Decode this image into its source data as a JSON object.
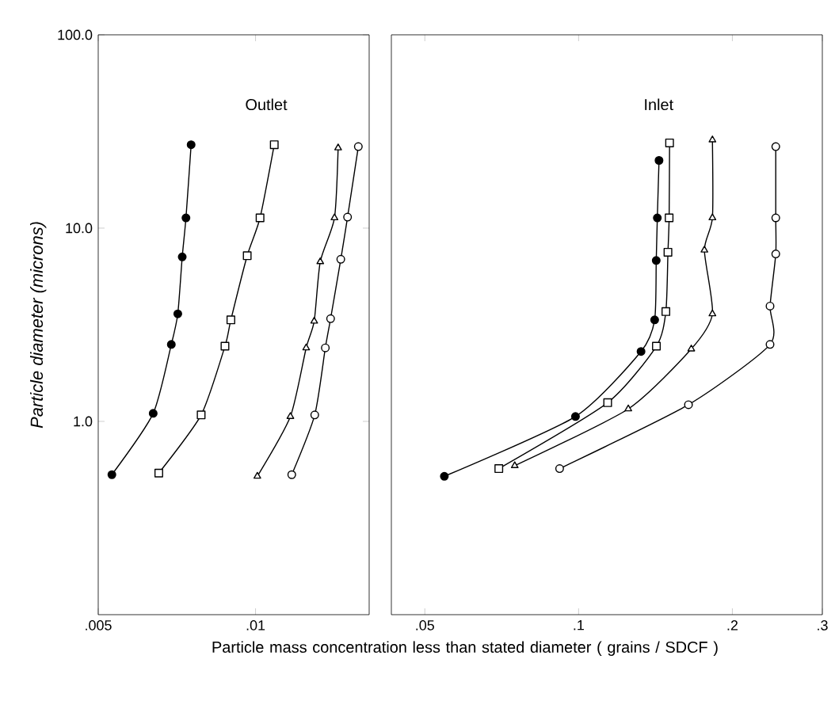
{
  "chart_data": [
    {
      "type": "line",
      "ylabel": "Particle diameter (microns)",
      "xlabel": "Particle mass concentration less than stated diameter ( grains / SDCF )",
      "log": "xy",
      "xlim": [
        0.005,
        0.0165
      ],
      "ylim": [
        0.1,
        100
      ],
      "xticks": [
        {
          "value": 0.005,
          "label": ".005"
        },
        {
          "value": 0.01,
          "label": ".01"
        }
      ],
      "yticks": [
        {
          "value": 1,
          "label": "1.0"
        },
        {
          "value": 10,
          "label": "10.0"
        },
        {
          "value": 100,
          "label": "100.0"
        }
      ],
      "annotations": [
        "Outlet"
      ],
      "series": [
        {
          "color": "#000000",
          "marker": "circle",
          "x": [
            0.00753,
            0.00736,
            0.00724,
            0.0071,
            0.0069,
            0.00637,
            0.00531
          ],
          "values": [
            27,
            11.3,
            7.1,
            3.6,
            2.5,
            1.1,
            0.53
          ]
        },
        {
          "color": "#000000",
          "marker": "square",
          "x": [
            0.01086,
            0.0102,
            0.00964,
            0.00897,
            0.00874,
            0.00787,
            0.00653
          ],
          "values": [
            27,
            11.3,
            7.2,
            3.35,
            2.45,
            1.08,
            0.54
          ]
        },
        {
          "color": "#000000",
          "marker": "triangle",
          "x": [
            0.01439,
            0.01416,
            0.0133,
            0.01295,
            0.0125,
            0.01166,
            0.01008
          ],
          "values": [
            26,
            11.3,
            6.7,
            3.3,
            2.4,
            1.06,
            0.52
          ]
        },
        {
          "color": "#000000",
          "marker": "circle",
          "x": [
            0.01573,
            0.015,
            0.01456,
            0.01392,
            0.0136,
            0.01298,
            0.01173
          ],
          "values": [
            26.4,
            11.4,
            6.9,
            3.4,
            2.4,
            1.08,
            0.53
          ]
        }
      ]
    },
    {
      "type": "line",
      "log": "xy",
      "xlim": [
        0.043,
        0.3
      ],
      "ylim": [
        0.1,
        100
      ],
      "tick_labels": "x",
      "xticks": [
        {
          "value": 0.05,
          "label": ".05"
        },
        {
          "value": 0.1,
          "label": ".1"
        },
        {
          "value": 0.2,
          "label": ".2"
        },
        {
          "value": 0.3,
          "label": ".3"
        }
      ],
      "annotations": [
        "Inlet"
      ],
      "series": [
        {
          "color": "#000000",
          "marker": "circle",
          "x": [
            0.1437,
            0.1426,
            0.1419,
            0.1409,
            0.1325,
            0.0986,
            0.0546
          ],
          "values": [
            22.4,
            11.3,
            6.8,
            3.35,
            2.3,
            1.06,
            0.52
          ]
        },
        {
          "color": "#000000",
          "marker": "square",
          "x": [
            0.1507,
            0.1504,
            0.1496,
            0.1482,
            0.142,
            0.114,
            0.0698
          ],
          "values": [
            27.6,
            11.3,
            7.5,
            3.7,
            2.45,
            1.25,
            0.57
          ]
        },
        {
          "color": "#000000",
          "marker": "triangle",
          "x": [
            0.1828,
            0.1828,
            0.1763,
            0.1828,
            0.1662,
            0.1251,
            0.075
          ],
          "values": [
            28.6,
            11.3,
            7.7,
            3.6,
            2.37,
            1.16,
            0.59
          ]
        },
        {
          "color": "#000000",
          "marker": "circle",
          "x": [
            0.2432,
            0.2432,
            0.2432,
            0.237,
            0.237,
            0.1641,
            0.0918
          ],
          "values": [
            26.4,
            11.3,
            7.35,
            3.95,
            2.5,
            1.22,
            0.57
          ]
        }
      ]
    }
  ]
}
